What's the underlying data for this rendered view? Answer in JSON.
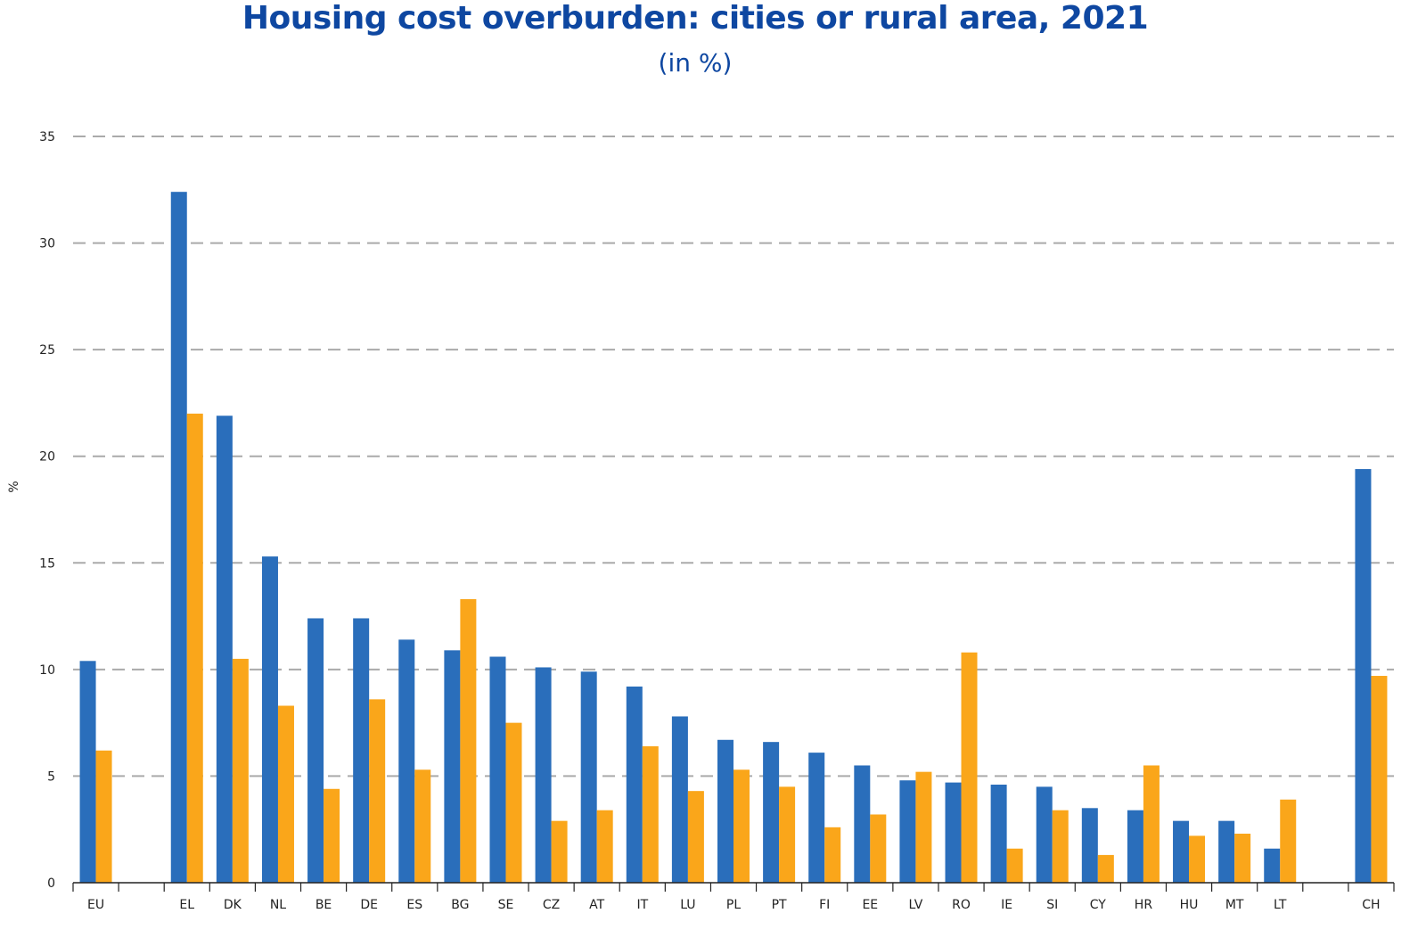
{
  "colors": {
    "title": "#0E47A1",
    "cities": "#2A6EBB",
    "rural": "#FAA61A",
    "grid": "#AAAAAA",
    "axis": "#222222"
  },
  "chart_data": {
    "type": "bar",
    "title": "Housing cost overburden: cities or rural area, 2021",
    "subtitle": "(in %)",
    "xlabel": "",
    "ylabel": "%",
    "ylim": [
      0,
      35
    ],
    "yticks": [
      0,
      5,
      10,
      15,
      20,
      25,
      30,
      35
    ],
    "grid": true,
    "categories": [
      "EU",
      "",
      "EL",
      "DK",
      "NL",
      "BE",
      "DE",
      "ES",
      "BG",
      "SE",
      "CZ",
      "AT",
      "IT",
      "LU",
      "PL",
      "PT",
      "FI",
      "EE",
      "LV",
      "RO",
      "IE",
      "SI",
      "CY",
      "HR",
      "HU",
      "MT",
      "LT",
      "",
      "CH"
    ],
    "series": [
      {
        "values": [
          10.4,
          null,
          32.4,
          21.9,
          15.3,
          12.4,
          12.4,
          11.4,
          10.9,
          10.6,
          10.1,
          9.9,
          9.2,
          7.8,
          6.7,
          6.6,
          6.1,
          5.5,
          4.8,
          4.7,
          4.6,
          4.5,
          3.5,
          3.4,
          2.9,
          2.9,
          1.6,
          null,
          19.4
        ]
      },
      {
        "values": [
          6.2,
          null,
          22.0,
          10.5,
          8.3,
          4.4,
          8.6,
          5.3,
          13.3,
          7.5,
          2.9,
          3.4,
          6.4,
          4.3,
          5.3,
          4.5,
          2.6,
          3.2,
          5.2,
          10.8,
          1.6,
          3.4,
          1.3,
          5.5,
          2.2,
          2.3,
          3.9,
          null,
          9.7
        ]
      }
    ]
  }
}
